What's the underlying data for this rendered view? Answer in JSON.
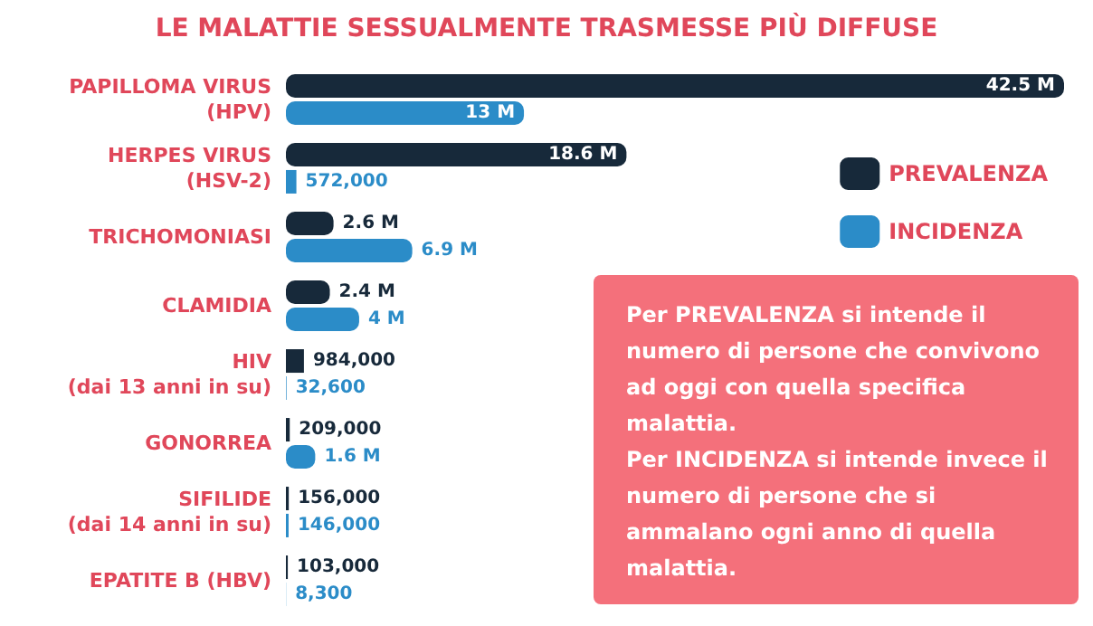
{
  "chart_data": {
    "type": "bar",
    "orientation": "horizontal",
    "title": "LE MALATTIE SESSUALMENTE TRASMESSE PIÙ DIFFUSE",
    "categories": [
      "PAPILLOMA VIRUS\n(HPV)",
      "HERPES VIRUS\n(HSV-2)",
      "TRICHOMONIASI",
      "CLAMIDIA",
      "HIV\n(dai 13 anni in su)",
      "GONORREA",
      "SIFILIDE\n(dai 14 anni in su)",
      "EPATITE B (HBV)"
    ],
    "series": [
      {
        "name": "PREVALENZA",
        "color": "#17293a",
        "values": [
          42500000,
          18600000,
          2600000,
          2400000,
          984000,
          209000,
          156000,
          103000
        ],
        "value_labels": [
          "42.5 M",
          "18.6 M",
          "2.6 M",
          "2.4 M",
          "984,000",
          "209,000",
          "156,000",
          "103,000"
        ]
      },
      {
        "name": "INCIDENZA",
        "color": "#2b8cc8",
        "values": [
          13000000,
          572000,
          6900000,
          4000000,
          32600,
          1600000,
          146000,
          8300
        ],
        "value_labels": [
          "13 M",
          "572,000",
          "6.9 M",
          "4 M",
          "32,600",
          "1.6 M",
          "146,000",
          "8,300"
        ]
      }
    ],
    "legend": "right",
    "annotations": [
      "Per PREVALENZA si intende il numero di persone che convivono ad oggi con quella specifica malattia.\nPer INCIDENZA si intende invece il numero di persone che si ammalano ogni anno di quella malattia."
    ]
  }
}
